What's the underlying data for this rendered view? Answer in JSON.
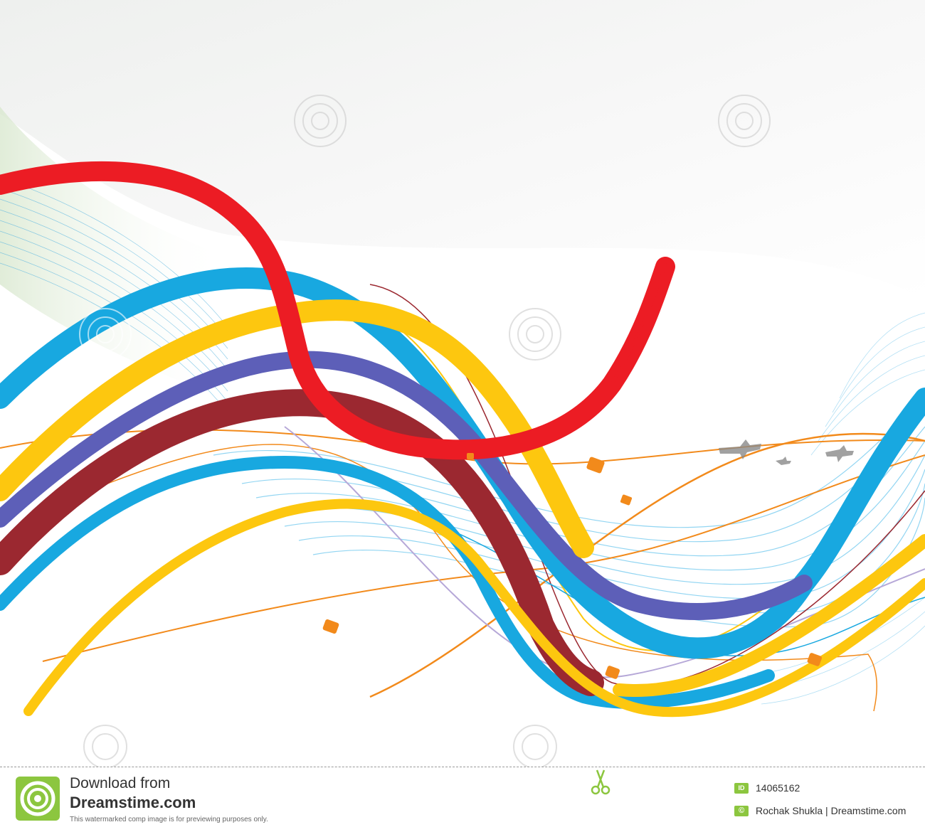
{
  "footer": {
    "line1": "Download from",
    "line2": "Dreamstime.com",
    "note": "This watermarked comp image is for previewing purposes only.",
    "id_badge": "ID",
    "id_number": "14065162",
    "copyright_badge": "©",
    "credit": "Rochak Shukla | Dreamstime.com"
  },
  "watermark": {
    "text": "dreamstime"
  },
  "icons": {
    "logo": "dreamstime-spiral-logo-icon",
    "scissors": "scissors-icon",
    "id": "id-badge-icon",
    "copyright": "copyright-icon"
  },
  "colors": {
    "red": "#ec1c24",
    "sky_blue": "#18a8e0",
    "yellow": "#fdc70f",
    "violet": "#5d5fb8",
    "maroon": "#9b2830",
    "orange": "#f28a1b",
    "light_blue": "#7fcdee",
    "brand_green": "#8cc63f"
  }
}
